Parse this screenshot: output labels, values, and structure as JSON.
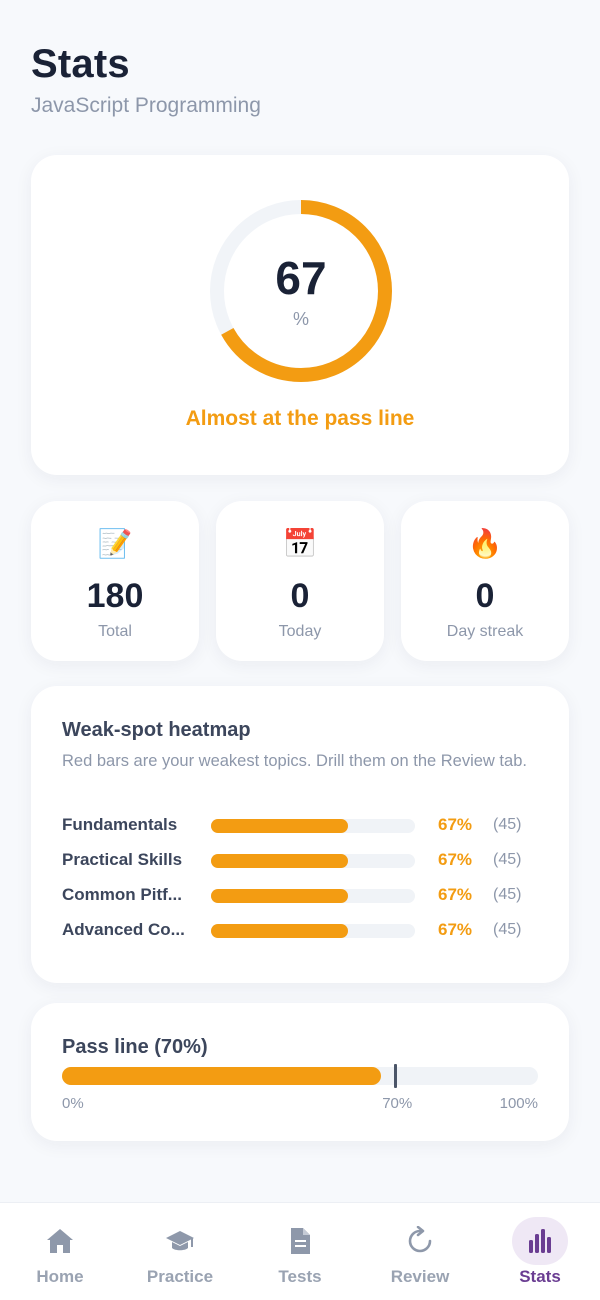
{
  "header": {
    "title": "Stats",
    "subtitle": "JavaScript Programming"
  },
  "score": {
    "value": "67",
    "unit": "%",
    "percent": 67,
    "message": "Almost at the pass line",
    "color": "#f39c12"
  },
  "stats": [
    {
      "emoji": "📝",
      "icon": "memo-icon",
      "value": "180",
      "label": "Total"
    },
    {
      "emoji": "📅",
      "icon": "calendar-icon",
      "value": "0",
      "label": "Today"
    },
    {
      "emoji": "🔥",
      "icon": "fire-icon",
      "value": "0",
      "label": "Day streak"
    }
  ],
  "heatmap": {
    "title": "Weak-spot heatmap",
    "description": "Red bars are your weakest topics. Drill them on the Review tab.",
    "rows": [
      {
        "name": "Fundamentals",
        "percent": 67,
        "pct_label": "67%",
        "count": "(45)"
      },
      {
        "name": "Practical Skills",
        "percent": 67,
        "pct_label": "67%",
        "count": "(45)"
      },
      {
        "name": "Common Pitf...",
        "percent": 67,
        "pct_label": "67%",
        "count": "(45)"
      },
      {
        "name": "Advanced Co...",
        "percent": 67,
        "pct_label": "67%",
        "count": "(45)"
      }
    ],
    "bar_color": "#f39c12"
  },
  "pass_line": {
    "title": "Pass line (70%)",
    "current_percent": 67,
    "pass_percent": 70,
    "ticks": [
      "0%",
      "70%",
      "100%"
    ],
    "bar_color": "#f39c12"
  },
  "tabs": [
    {
      "label": "Home",
      "icon": "home-icon",
      "active": false
    },
    {
      "label": "Practice",
      "icon": "graduation-cap-icon",
      "active": false
    },
    {
      "label": "Tests",
      "icon": "document-icon",
      "active": false
    },
    {
      "label": "Review",
      "icon": "refresh-icon",
      "active": false
    },
    {
      "label": "Stats",
      "icon": "bar-chart-icon",
      "active": true
    }
  ],
  "colors": {
    "accent": "#f39c12",
    "active_tab": "#6a3d92",
    "inactive_tab": "#9aa3b2"
  }
}
